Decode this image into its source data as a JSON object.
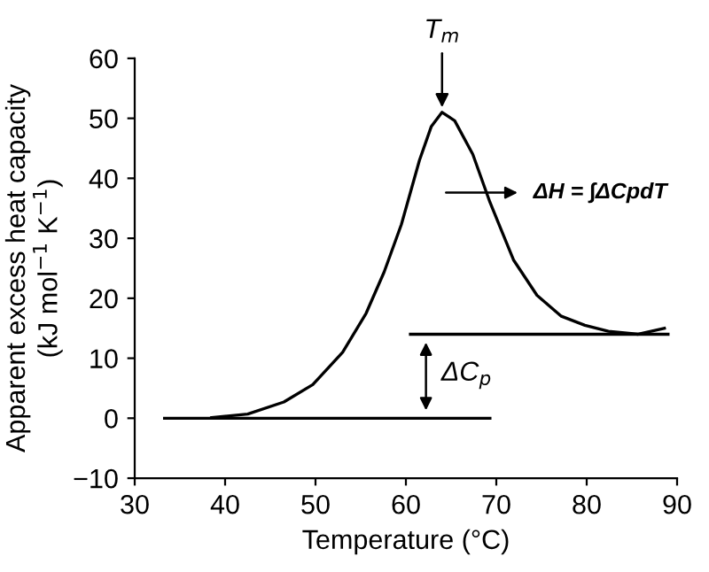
{
  "chart_data": {
    "type": "line",
    "xlabel": "Temperature (°C)",
    "ylabel": "Apparent excess heat capacity\n(kJ mol$^{−1}$ K$^{−1}$)",
    "series": [
      {
        "color": "#000000",
        "x": [
          38.5,
          42.5,
          46.5,
          49.7,
          53,
          55.6,
          57.6,
          59.5,
          61.5,
          62.8,
          64,
          65.4,
          67.4,
          69.3,
          71.9,
          74.5,
          77.2,
          79.8,
          82.4,
          85.7,
          88.6
        ],
        "values": [
          0.1,
          0.7,
          2.7,
          5.6,
          11,
          17.5,
          24.4,
          32.3,
          43,
          48.6,
          51,
          49.6,
          44,
          36,
          26.4,
          20.5,
          17,
          15.5,
          14.5,
          14,
          15
        ]
      },
      {
        "color": "#000000",
        "x": [
          33.3,
          69.3
        ],
        "values": [
          0,
          0
        ]
      },
      {
        "color": "#000000",
        "x": [
          60.5,
          89
        ],
        "values": [
          14,
          14
        ]
      }
    ],
    "annotations": [
      {
        "text": "T$_{m}$",
        "x": 64,
        "y": 51
      },
      "ΔH = ∫ΔCpdT",
      "ΔC$_{p}$"
    ],
    "xlim": [
      30,
      90
    ],
    "xticks": [
      30,
      40,
      50,
      60,
      70,
      80,
      90
    ],
    "ylim": [
      -10,
      60
    ],
    "yticks": [
      -10,
      0,
      10,
      20,
      30,
      40,
      50,
      60
    ],
    "grid": false,
    "marker": "none",
    "line_style": "solid"
  }
}
